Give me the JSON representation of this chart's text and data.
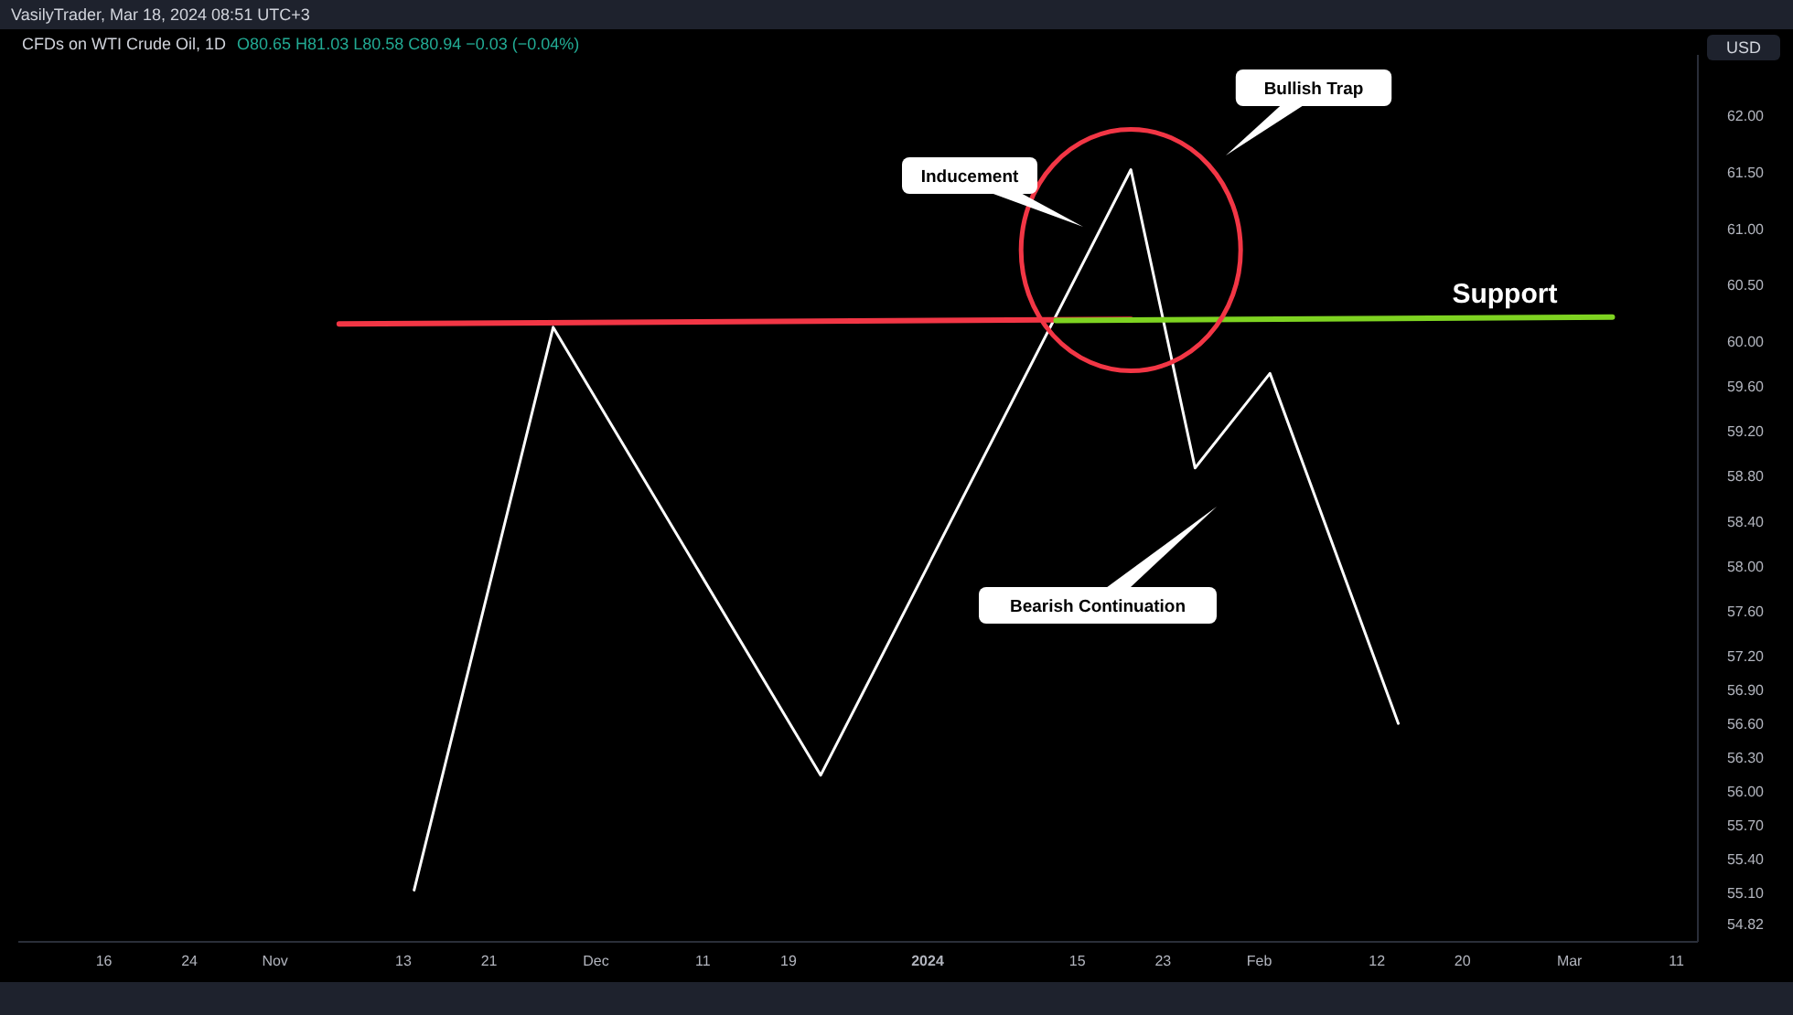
{
  "chart_data": {
    "type": "line",
    "title": "CFDs on WTI Crude Oil, 1D",
    "subtitle": "O80.65 H81.03 L80.58 C80.94 −0.03 (−0.04%)",
    "ylabel": "USD",
    "annotations": [
      "VasilyTrader, Mar 18, 2024 08:51 UTC+3",
      "Inducement",
      "Bullish Trap",
      "Bearish Continuation"
    ],
    "xlim": [
      "2023-10-08",
      "2024-03-13"
    ],
    "xticks": [
      {
        "value": "2023-10-16",
        "label": "16"
      },
      {
        "value": "2023-10-24",
        "label": "24"
      },
      {
        "value": "2023-11-01",
        "label": "Nov"
      },
      {
        "value": "2023-11-13",
        "label": "13"
      },
      {
        "value": "2023-11-21",
        "label": "21"
      },
      {
        "value": "2023-12-01",
        "label": "Dec"
      },
      {
        "value": "2023-12-11",
        "label": "11"
      },
      {
        "value": "2023-12-19",
        "label": "19"
      },
      {
        "value": "2024-01-01",
        "label": "2024"
      },
      {
        "value": "2024-01-15",
        "label": "15"
      },
      {
        "value": "2024-01-23",
        "label": "23"
      },
      {
        "value": "2024-02-01",
        "label": "Feb"
      },
      {
        "value": "2024-02-12",
        "label": "12"
      },
      {
        "value": "2024-02-20",
        "label": "20"
      },
      {
        "value": "2024-03-01",
        "label": "Mar"
      },
      {
        "value": "2024-03-11",
        "label": "11"
      }
    ],
    "ylim": [
      54.66,
      62.54
    ],
    "yticks": [
      {
        "value": 62,
        "label": "62.00"
      },
      {
        "value": 61.5,
        "label": "61.50"
      },
      {
        "value": 61,
        "label": "61.00"
      },
      {
        "value": 60.5,
        "label": "60.50"
      },
      {
        "value": 60,
        "label": "60.00"
      },
      {
        "value": 59.6,
        "label": "59.60"
      },
      {
        "value": 59.2,
        "label": "59.20"
      },
      {
        "value": 58.8,
        "label": "58.80"
      },
      {
        "value": 58.4,
        "label": "58.40"
      },
      {
        "value": 58,
        "label": "58.00"
      },
      {
        "value": 57.6,
        "label": "57.60"
      },
      {
        "value": 57.2,
        "label": "57.20"
      },
      {
        "value": 56.9,
        "label": "56.90"
      },
      {
        "value": 56.6,
        "label": "56.60"
      },
      {
        "value": 56.3,
        "label": "56.30"
      },
      {
        "value": 56,
        "label": "56.00"
      },
      {
        "value": 55.7,
        "label": "55.70"
      },
      {
        "value": 55.4,
        "label": "55.40"
      },
      {
        "value": 55.1,
        "label": "55.10"
      },
      {
        "value": 54.82,
        "label": "54.82"
      }
    ],
    "grid": false,
    "marker": "none",
    "line_style": "solid",
    "series": [
      {
        "color": "#ffffff",
        "x": [
          "2023-11-14",
          "2023-11-27",
          "2023-12-22",
          "2024-01-20",
          "2024-01-26",
          "2024-02-02",
          "2024-02-14"
        ],
        "values": [
          55.12,
          60.12,
          56.14,
          61.52,
          58.87,
          59.71,
          56.6
        ]
      },
      {
        "color": "#f23645",
        "x": [
          "2023-11-07",
          "2024-01-20"
        ],
        "values": [
          60.15,
          60.19
        ]
      },
      {
        "name": "Support",
        "color": "#7ed321",
        "x": [
          "2024-01-13",
          "2024-03-05"
        ],
        "values": [
          60.18,
          60.21
        ]
      }
    ]
  }
}
